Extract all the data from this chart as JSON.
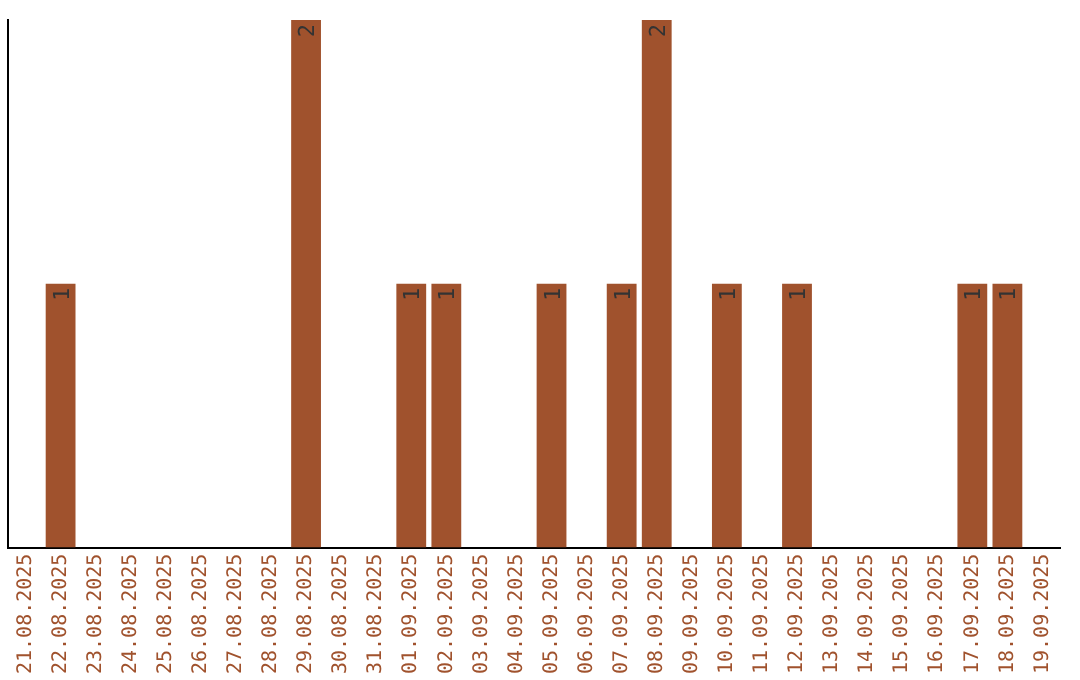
{
  "chart_data": {
    "type": "bar",
    "categories": [
      "21.08.2025",
      "22.08.2025",
      "23.08.2025",
      "24.08.2025",
      "25.08.2025",
      "26.08.2025",
      "27.08.2025",
      "28.08.2025",
      "29.08.2025",
      "30.08.2025",
      "31.08.2025",
      "01.09.2025",
      "02.09.2025",
      "03.09.2025",
      "04.09.2025",
      "05.09.2025",
      "06.09.2025",
      "07.09.2025",
      "08.09.2025",
      "09.09.2025",
      "10.09.2025",
      "11.09.2025",
      "12.09.2025",
      "13.09.2025",
      "14.09.2025",
      "15.09.2025",
      "16.09.2025",
      "17.09.2025",
      "18.09.2025",
      "19.09.2025"
    ],
    "values": [
      0,
      1,
      0,
      0,
      0,
      0,
      0,
      0,
      2,
      0,
      0,
      1,
      1,
      0,
      0,
      1,
      0,
      1,
      2,
      0,
      1,
      0,
      1,
      0,
      0,
      0,
      0,
      1,
      1,
      0
    ],
    "value_labels": [
      null,
      "1",
      null,
      null,
      null,
      null,
      null,
      null,
      "2",
      null,
      null,
      "1",
      "1",
      null,
      null,
      "1",
      null,
      "1",
      "2",
      null,
      "1",
      null,
      "1",
      null,
      null,
      null,
      null,
      "1",
      "1",
      null
    ],
    "color": "#a0522d",
    "grid": false,
    "legend": false,
    "tick_labels": "x"
  }
}
